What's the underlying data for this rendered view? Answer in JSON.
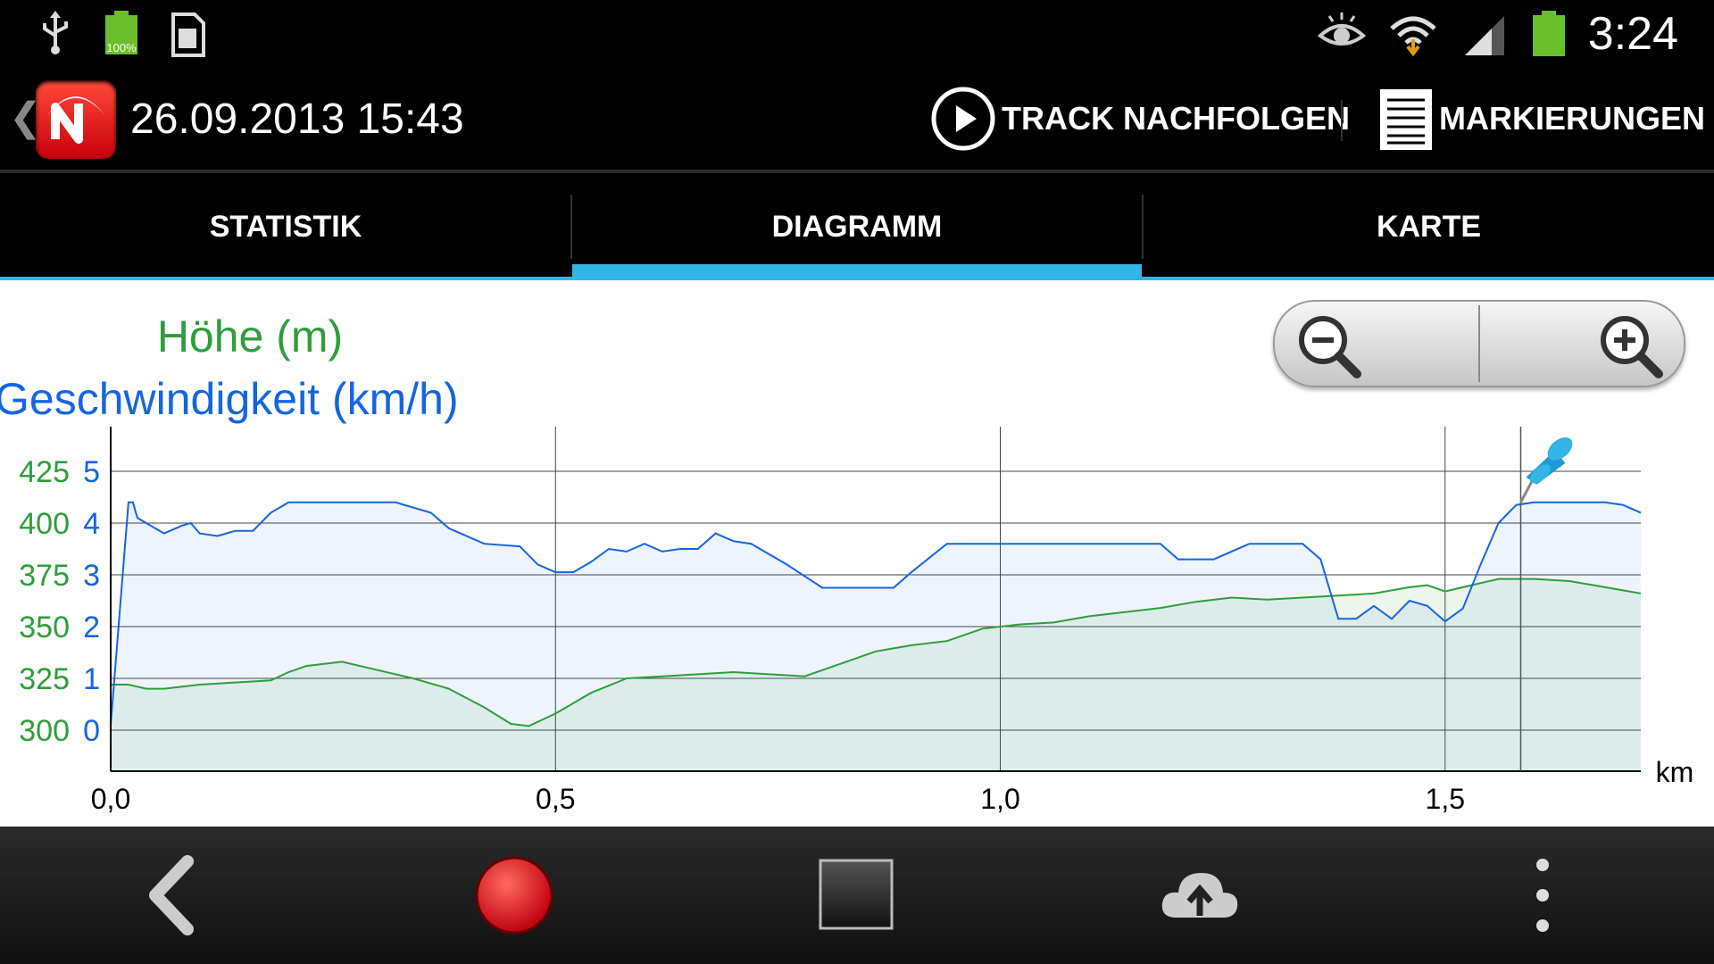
{
  "status_bar": {
    "battery_small_label": "100%",
    "time": "3:24",
    "icons_left": [
      "usb-icon",
      "battery-icon",
      "sd-card-icon"
    ],
    "icons_right": [
      "eye-icon",
      "wifi-icon",
      "signal-icon",
      "battery-icon"
    ]
  },
  "action_bar": {
    "title": "26.09.2013 15:43",
    "follow_track": "TRACK NACHFOLGEN",
    "markers": "MARKIERUNGEN"
  },
  "tabs": [
    {
      "label": "STATISTIK",
      "selected": false
    },
    {
      "label": "DIAGRAMM",
      "selected": true
    },
    {
      "label": "KARTE",
      "selected": false
    }
  ],
  "chart_data": {
    "type": "area",
    "x_unit": "km",
    "xlim": [
      0,
      1.72
    ],
    "x_ticks": [
      "0,0",
      "0,5",
      "1,0",
      "1,5"
    ],
    "x_tick_values": [
      0,
      0.5,
      1.0,
      1.5
    ],
    "marker_x": 1.585,
    "grid": true,
    "legend": [
      {
        "name": "Höhe (m)",
        "color": "#2e9e3a"
      },
      {
        "name": "Geschwindigkeit (km/h)",
        "color": "#1565e0"
      }
    ],
    "series": [
      {
        "name": "Höhe (m)",
        "color": "#2e9e3a",
        "axis": "left",
        "ylim": [
          292,
          425
        ],
        "y_ticks": [
          "300",
          "325",
          "350",
          "375",
          "400",
          "425"
        ],
        "x": [
          0,
          0.02,
          0.04,
          0.06,
          0.1,
          0.14,
          0.18,
          0.2,
          0.22,
          0.26,
          0.3,
          0.34,
          0.38,
          0.42,
          0.45,
          0.47,
          0.5,
          0.54,
          0.58,
          0.62,
          0.66,
          0.7,
          0.74,
          0.78,
          0.82,
          0.86,
          0.9,
          0.94,
          0.98,
          1.02,
          1.06,
          1.1,
          1.14,
          1.18,
          1.22,
          1.26,
          1.3,
          1.34,
          1.38,
          1.42,
          1.46,
          1.48,
          1.5,
          1.52,
          1.56,
          1.6,
          1.64,
          1.68,
          1.72
        ],
        "values": [
          322,
          322,
          320,
          320,
          322,
          323,
          324,
          328,
          331,
          333,
          329,
          325,
          320,
          311,
          303,
          302,
          308,
          318,
          325,
          326,
          327,
          328,
          327,
          326,
          332,
          338,
          341,
          343,
          349,
          351,
          352,
          355,
          357,
          359,
          362,
          364,
          363,
          364,
          365,
          366,
          369,
          370,
          367,
          369,
          373,
          373,
          372,
          369,
          366
        ]
      },
      {
        "name": "Geschwindigkeit (km/h)",
        "color": "#1565e0",
        "axis": "right",
        "ylim": [
          0,
          5
        ],
        "y_ticks": [
          "0",
          "1",
          "2",
          "3",
          "4",
          "5"
        ],
        "x": [
          0,
          0.02,
          0.025,
          0.03,
          0.06,
          0.08,
          0.09,
          0.1,
          0.12,
          0.14,
          0.16,
          0.18,
          0.2,
          0.22,
          0.24,
          0.28,
          0.32,
          0.36,
          0.38,
          0.42,
          0.46,
          0.48,
          0.5,
          0.52,
          0.54,
          0.56,
          0.58,
          0.6,
          0.62,
          0.64,
          0.66,
          0.68,
          0.7,
          0.72,
          0.76,
          0.8,
          0.84,
          0.88,
          0.9,
          0.94,
          0.98,
          1.02,
          1.06,
          1.1,
          1.14,
          1.18,
          1.2,
          1.24,
          1.28,
          1.32,
          1.34,
          1.36,
          1.38,
          1.4,
          1.42,
          1.44,
          1.46,
          1.48,
          1.5,
          1.52,
          1.54,
          1.56,
          1.58,
          1.6,
          1.64,
          1.68,
          1.7,
          1.72
        ],
        "values": [
          0.1,
          4.4,
          4.4,
          4.1,
          3.8,
          3.95,
          4.0,
          3.8,
          3.75,
          3.85,
          3.85,
          4.2,
          4.4,
          4.4,
          4.4,
          4.4,
          4.4,
          4.2,
          3.9,
          3.6,
          3.55,
          3.2,
          3.05,
          3.05,
          3.25,
          3.5,
          3.45,
          3.6,
          3.45,
          3.5,
          3.5,
          3.8,
          3.65,
          3.6,
          3.2,
          2.75,
          2.75,
          2.75,
          3.05,
          3.6,
          3.6,
          3.6,
          3.6,
          3.6,
          3.6,
          3.6,
          3.3,
          3.3,
          3.6,
          3.6,
          3.6,
          3.3,
          2.15,
          2.15,
          2.4,
          2.15,
          2.5,
          2.4,
          2.1,
          2.35,
          3.2,
          4.0,
          4.35,
          4.4,
          4.4,
          4.4,
          4.35,
          4.2
        ]
      }
    ]
  },
  "zoom_controls": {
    "zoom_out": "zoom-out",
    "zoom_in": "zoom-in"
  },
  "nav_bar": {
    "items": [
      "back",
      "record",
      "window",
      "upload",
      "menu"
    ]
  }
}
